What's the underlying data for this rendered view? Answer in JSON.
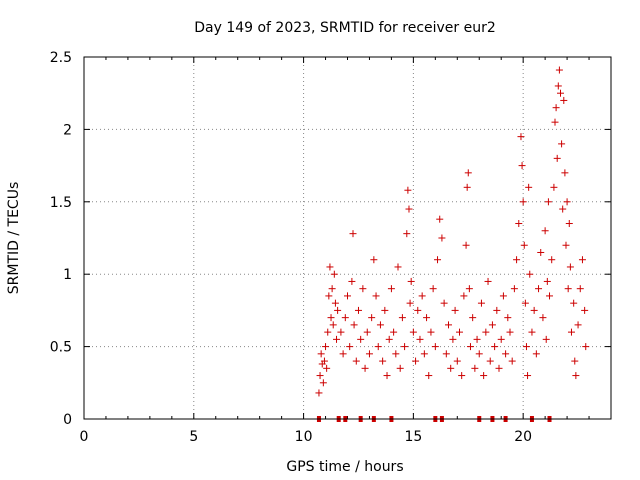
{
  "chart_data": {
    "type": "scatter",
    "title": "Day 149 of 2023, SRMTID for receiver eur2",
    "xlabel": "GPS time / hours",
    "ylabel": "SRMTID / TECUs",
    "xlim": [
      0,
      24
    ],
    "ylim": [
      0,
      2.5
    ],
    "x_ticks": [
      0,
      5,
      10,
      15,
      20
    ],
    "y_ticks": [
      0,
      0.5,
      1,
      1.5,
      2,
      2.5
    ],
    "x_tick_labels": [
      "0",
      "5",
      "10",
      "15",
      "20"
    ],
    "y_tick_labels": [
      "0",
      "0.5",
      "1",
      "1.5",
      "2",
      "2.5"
    ],
    "grid": true,
    "marker": "+",
    "color": "#cc0000",
    "series": [
      {
        "name": "SRMTID",
        "points": [
          [
            10.7,
            0.18
          ],
          [
            10.75,
            0.3
          ],
          [
            10.8,
            0.45
          ],
          [
            10.85,
            0.38
          ],
          [
            10.9,
            0.25
          ],
          [
            10.95,
            0.4
          ],
          [
            11.0,
            0.5
          ],
          [
            11.05,
            0.35
          ],
          [
            11.1,
            0.6
          ],
          [
            11.15,
            0.85
          ],
          [
            11.2,
            1.05
          ],
          [
            11.25,
            0.7
          ],
          [
            11.3,
            0.9
          ],
          [
            11.35,
            0.65
          ],
          [
            11.4,
            1.0
          ],
          [
            11.45,
            0.8
          ],
          [
            11.5,
            0.55
          ],
          [
            11.55,
            0.75
          ],
          [
            11.7,
            0.6
          ],
          [
            11.8,
            0.45
          ],
          [
            11.9,
            0.7
          ],
          [
            12.0,
            0.85
          ],
          [
            12.1,
            0.5
          ],
          [
            12.2,
            0.95
          ],
          [
            12.25,
            1.28
          ],
          [
            12.3,
            0.65
          ],
          [
            12.4,
            0.4
          ],
          [
            12.5,
            0.75
          ],
          [
            12.6,
            0.55
          ],
          [
            12.7,
            0.9
          ],
          [
            12.8,
            0.35
          ],
          [
            12.9,
            0.6
          ],
          [
            13.0,
            0.45
          ],
          [
            13.1,
            0.7
          ],
          [
            13.2,
            1.1
          ],
          [
            13.3,
            0.85
          ],
          [
            13.4,
            0.5
          ],
          [
            13.5,
            0.65
          ],
          [
            13.6,
            0.4
          ],
          [
            13.7,
            0.75
          ],
          [
            13.8,
            0.3
          ],
          [
            13.9,
            0.55
          ],
          [
            14.0,
            0.9
          ],
          [
            14.1,
            0.6
          ],
          [
            14.2,
            0.45
          ],
          [
            14.3,
            1.05
          ],
          [
            14.4,
            0.35
          ],
          [
            14.5,
            0.7
          ],
          [
            14.6,
            0.5
          ],
          [
            14.7,
            1.28
          ],
          [
            14.75,
            1.58
          ],
          [
            14.8,
            1.45
          ],
          [
            14.85,
            0.8
          ],
          [
            14.9,
            0.95
          ],
          [
            15.0,
            0.6
          ],
          [
            15.1,
            0.4
          ],
          [
            15.2,
            0.75
          ],
          [
            15.3,
            0.55
          ],
          [
            15.4,
            0.85
          ],
          [
            15.5,
            0.45
          ],
          [
            15.6,
            0.7
          ],
          [
            15.7,
            0.3
          ],
          [
            15.8,
            0.6
          ],
          [
            15.9,
            0.9
          ],
          [
            16.0,
            0.5
          ],
          [
            16.1,
            1.1
          ],
          [
            16.2,
            1.38
          ],
          [
            16.3,
            1.25
          ],
          [
            16.4,
            0.8
          ],
          [
            16.5,
            0.45
          ],
          [
            16.6,
            0.65
          ],
          [
            16.7,
            0.35
          ],
          [
            16.8,
            0.55
          ],
          [
            16.9,
            0.75
          ],
          [
            17.0,
            0.4
          ],
          [
            17.1,
            0.6
          ],
          [
            17.2,
            0.3
          ],
          [
            17.3,
            0.85
          ],
          [
            17.4,
            1.2
          ],
          [
            17.45,
            1.6
          ],
          [
            17.5,
            1.7
          ],
          [
            17.55,
            0.9
          ],
          [
            17.6,
            0.5
          ],
          [
            17.7,
            0.7
          ],
          [
            17.8,
            0.35
          ],
          [
            17.9,
            0.55
          ],
          [
            18.0,
            0.45
          ],
          [
            18.1,
            0.8
          ],
          [
            18.2,
            0.3
          ],
          [
            18.3,
            0.6
          ],
          [
            18.4,
            0.95
          ],
          [
            18.5,
            0.4
          ],
          [
            18.6,
            0.65
          ],
          [
            18.7,
            0.5
          ],
          [
            18.8,
            0.75
          ],
          [
            18.9,
            0.35
          ],
          [
            19.0,
            0.55
          ],
          [
            19.1,
            0.85
          ],
          [
            19.2,
            0.45
          ],
          [
            19.3,
            0.7
          ],
          [
            19.4,
            0.6
          ],
          [
            19.5,
            0.4
          ],
          [
            19.6,
            0.9
          ],
          [
            19.7,
            1.1
          ],
          [
            19.8,
            1.35
          ],
          [
            19.9,
            1.95
          ],
          [
            19.95,
            1.75
          ],
          [
            20.0,
            1.5
          ],
          [
            20.05,
            1.2
          ],
          [
            20.1,
            0.8
          ],
          [
            20.15,
            0.5
          ],
          [
            20.2,
            0.3
          ],
          [
            20.25,
            1.6
          ],
          [
            20.3,
            1.0
          ],
          [
            20.4,
            0.6
          ],
          [
            20.5,
            0.75
          ],
          [
            20.6,
            0.45
          ],
          [
            20.7,
            0.9
          ],
          [
            20.8,
            1.15
          ],
          [
            20.9,
            0.7
          ],
          [
            21.0,
            1.3
          ],
          [
            21.05,
            0.55
          ],
          [
            21.1,
            0.95
          ],
          [
            21.15,
            1.5
          ],
          [
            21.2,
            0.85
          ],
          [
            21.3,
            1.1
          ],
          [
            21.4,
            1.6
          ],
          [
            21.45,
            2.05
          ],
          [
            21.5,
            2.15
          ],
          [
            21.55,
            1.8
          ],
          [
            21.6,
            2.3
          ],
          [
            21.65,
            2.41
          ],
          [
            21.7,
            2.25
          ],
          [
            21.75,
            1.9
          ],
          [
            21.8,
            1.45
          ],
          [
            21.85,
            2.2
          ],
          [
            21.9,
            1.7
          ],
          [
            21.95,
            1.2
          ],
          [
            22.0,
            1.5
          ],
          [
            22.05,
            0.9
          ],
          [
            22.1,
            1.35
          ],
          [
            22.15,
            1.05
          ],
          [
            22.2,
            0.6
          ],
          [
            22.3,
            0.8
          ],
          [
            22.35,
            0.4
          ],
          [
            22.4,
            0.3
          ],
          [
            22.5,
            0.65
          ],
          [
            22.6,
            0.9
          ],
          [
            22.7,
            1.1
          ],
          [
            22.8,
            0.75
          ],
          [
            22.85,
            0.5
          ]
        ]
      }
    ],
    "baseline_markers_x": [
      10.7,
      11.6,
      11.9,
      12.6,
      13.2,
      14.0,
      16.0,
      16.3,
      18.0,
      18.6,
      19.2,
      20.4,
      21.2
    ]
  }
}
